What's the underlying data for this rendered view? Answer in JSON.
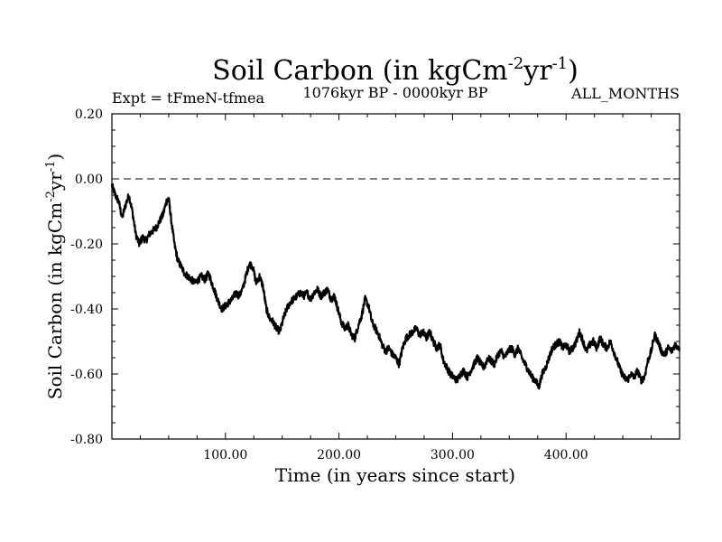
{
  "chart_data": {
    "type": "line",
    "title": {
      "text": "Soil Carbon (in kgCm",
      "sup1": "-2",
      "mid": "yr",
      "sup2": "-1",
      "end": ")"
    },
    "subtitle_left": "Expt = tFmeN-tfmea",
    "subtitle_center": "1076kyr BP - 0000kyr BP",
    "subtitle_right": "ALL_MONTHS",
    "xlabel": "Time (in years since start)",
    "ylabel": {
      "text": "Soil Carbon (in kgCm",
      "sup1": "-2",
      "mid": "yr",
      "sup2": "-1",
      "end": ")"
    },
    "xlim": [
      0,
      500
    ],
    "ylim": [
      -0.8,
      0.2
    ],
    "x_ticks": [
      100,
      200,
      300,
      400
    ],
    "x_tick_labels": [
      "100.00",
      "200.00",
      "300.00",
      "400.00"
    ],
    "y_ticks": [
      0.2,
      0.0,
      -0.2,
      -0.4,
      -0.6,
      -0.8
    ],
    "y_tick_labels": [
      "0.20",
      "0.00",
      "-0.20",
      "-0.40",
      "-0.60",
      "-0.80"
    ],
    "reference_line": {
      "y": 0.0,
      "style": "dashed"
    },
    "series": [
      {
        "name": "Soil Carbon",
        "color": "#000000",
        "points": [
          [
            0,
            -0.02
          ],
          [
            3,
            -0.05
          ],
          [
            6,
            -0.07
          ],
          [
            9,
            -0.12
          ],
          [
            12,
            -0.08
          ],
          [
            15,
            -0.05
          ],
          [
            18,
            -0.1
          ],
          [
            21,
            -0.17
          ],
          [
            24,
            -0.2
          ],
          [
            27,
            -0.18
          ],
          [
            30,
            -0.19
          ],
          [
            33,
            -0.17
          ],
          [
            36,
            -0.16
          ],
          [
            39,
            -0.15
          ],
          [
            42,
            -0.13
          ],
          [
            45,
            -0.11
          ],
          [
            48,
            -0.07
          ],
          [
            50,
            -0.06
          ],
          [
            52,
            -0.12
          ],
          [
            55,
            -0.2
          ],
          [
            58,
            -0.25
          ],
          [
            61,
            -0.27
          ],
          [
            64,
            -0.29
          ],
          [
            67,
            -0.3
          ],
          [
            70,
            -0.31
          ],
          [
            73,
            -0.32
          ],
          [
            76,
            -0.31
          ],
          [
            79,
            -0.3
          ],
          [
            82,
            -0.31
          ],
          [
            85,
            -0.29
          ],
          [
            88,
            -0.32
          ],
          [
            91,
            -0.35
          ],
          [
            94,
            -0.38
          ],
          [
            97,
            -0.4
          ],
          [
            100,
            -0.39
          ],
          [
            103,
            -0.38
          ],
          [
            106,
            -0.37
          ],
          [
            109,
            -0.35
          ],
          [
            112,
            -0.36
          ],
          [
            115,
            -0.34
          ],
          [
            118,
            -0.3
          ],
          [
            121,
            -0.26
          ],
          [
            124,
            -0.27
          ],
          [
            127,
            -0.32
          ],
          [
            130,
            -0.3
          ],
          [
            133,
            -0.33
          ],
          [
            136,
            -0.4
          ],
          [
            139,
            -0.43
          ],
          [
            142,
            -0.44
          ],
          [
            145,
            -0.46
          ],
          [
            148,
            -0.47
          ],
          [
            151,
            -0.43
          ],
          [
            154,
            -0.4
          ],
          [
            157,
            -0.38
          ],
          [
            160,
            -0.37
          ],
          [
            163,
            -0.36
          ],
          [
            166,
            -0.35
          ],
          [
            169,
            -0.36
          ],
          [
            172,
            -0.35
          ],
          [
            175,
            -0.37
          ],
          [
            178,
            -0.35
          ],
          [
            181,
            -0.34
          ],
          [
            184,
            -0.36
          ],
          [
            187,
            -0.35
          ],
          [
            190,
            -0.34
          ],
          [
            193,
            -0.37
          ],
          [
            196,
            -0.36
          ],
          [
            199,
            -0.4
          ],
          [
            202,
            -0.44
          ],
          [
            205,
            -0.46
          ],
          [
            208,
            -0.45
          ],
          [
            211,
            -0.48
          ],
          [
            214,
            -0.49
          ],
          [
            217,
            -0.45
          ],
          [
            220,
            -0.42
          ],
          [
            223,
            -0.37
          ],
          [
            226,
            -0.39
          ],
          [
            229,
            -0.44
          ],
          [
            232,
            -0.46
          ],
          [
            235,
            -0.48
          ],
          [
            238,
            -0.51
          ],
          [
            241,
            -0.53
          ],
          [
            244,
            -0.52
          ],
          [
            247,
            -0.54
          ],
          [
            250,
            -0.55
          ],
          [
            253,
            -0.57
          ],
          [
            256,
            -0.52
          ],
          [
            259,
            -0.49
          ],
          [
            262,
            -0.48
          ],
          [
            265,
            -0.47
          ],
          [
            268,
            -0.46
          ],
          [
            271,
            -0.48
          ],
          [
            274,
            -0.47
          ],
          [
            277,
            -0.49
          ],
          [
            280,
            -0.47
          ],
          [
            283,
            -0.5
          ],
          [
            286,
            -0.52
          ],
          [
            289,
            -0.51
          ],
          [
            292,
            -0.56
          ],
          [
            295,
            -0.58
          ],
          [
            298,
            -0.6
          ],
          [
            301,
            -0.61
          ],
          [
            304,
            -0.62
          ],
          [
            307,
            -0.6
          ],
          [
            310,
            -0.59
          ],
          [
            313,
            -0.61
          ],
          [
            316,
            -0.59
          ],
          [
            319,
            -0.57
          ],
          [
            322,
            -0.55
          ],
          [
            325,
            -0.57
          ],
          [
            328,
            -0.58
          ],
          [
            331,
            -0.55
          ],
          [
            334,
            -0.56
          ],
          [
            337,
            -0.57
          ],
          [
            340,
            -0.54
          ],
          [
            343,
            -0.53
          ],
          [
            346,
            -0.55
          ],
          [
            349,
            -0.53
          ],
          [
            352,
            -0.52
          ],
          [
            355,
            -0.54
          ],
          [
            358,
            -0.52
          ],
          [
            361,
            -0.55
          ],
          [
            364,
            -0.57
          ],
          [
            367,
            -0.59
          ],
          [
            370,
            -0.61
          ],
          [
            373,
            -0.62
          ],
          [
            376,
            -0.64
          ],
          [
            379,
            -0.6
          ],
          [
            382,
            -0.58
          ],
          [
            385,
            -0.55
          ],
          [
            388,
            -0.52
          ],
          [
            391,
            -0.51
          ],
          [
            394,
            -0.5
          ],
          [
            397,
            -0.52
          ],
          [
            400,
            -0.51
          ],
          [
            403,
            -0.53
          ],
          [
            406,
            -0.52
          ],
          [
            409,
            -0.5
          ],
          [
            412,
            -0.47
          ],
          [
            415,
            -0.5
          ],
          [
            418,
            -0.53
          ],
          [
            421,
            -0.51
          ],
          [
            424,
            -0.5
          ],
          [
            427,
            -0.52
          ],
          [
            430,
            -0.49
          ],
          [
            433,
            -0.51
          ],
          [
            436,
            -0.52
          ],
          [
            439,
            -0.5
          ],
          [
            442,
            -0.53
          ],
          [
            445,
            -0.56
          ],
          [
            448,
            -0.59
          ],
          [
            451,
            -0.61
          ],
          [
            454,
            -0.62
          ],
          [
            457,
            -0.6
          ],
          [
            460,
            -0.61
          ],
          [
            463,
            -0.59
          ],
          [
            466,
            -0.62
          ],
          [
            469,
            -0.61
          ],
          [
            472,
            -0.56
          ],
          [
            475,
            -0.53
          ],
          [
            478,
            -0.48
          ],
          [
            481,
            -0.5
          ],
          [
            484,
            -0.53
          ],
          [
            487,
            -0.54
          ],
          [
            490,
            -0.52
          ],
          [
            493,
            -0.53
          ],
          [
            496,
            -0.51
          ],
          [
            500,
            -0.52
          ]
        ]
      }
    ]
  }
}
